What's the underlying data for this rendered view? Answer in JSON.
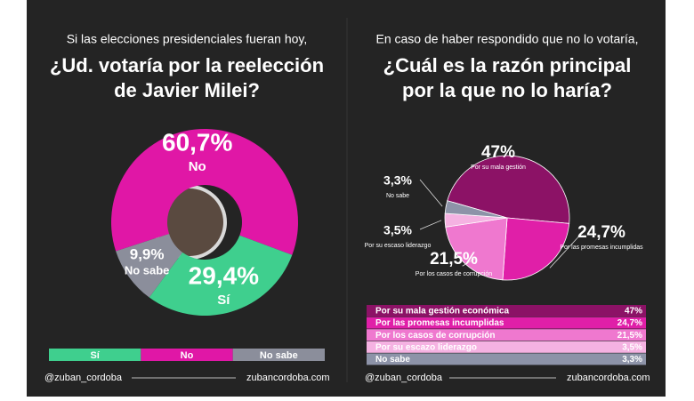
{
  "chart_data": [
    {
      "type": "donut",
      "subtitle": "Si las elecciones presidenciales fueran hoy,",
      "title": [
        "¿Ud. votaría por la reelección",
        "de Javier Milei?"
      ],
      "categories": [
        "No",
        "Sí",
        "No sabe"
      ],
      "values": [
        60.7,
        29.4,
        9.9
      ],
      "value_labels": [
        "60,7%",
        "29,4%",
        "9,9%"
      ],
      "colors": [
        "#e017a6",
        "#3fcf8e",
        "#8b8e9b"
      ],
      "legend": {
        "labels": [
          "Sí",
          "No",
          "No sabe"
        ],
        "colors": [
          "#3fcf8e",
          "#e017a6",
          "#8b8e9b"
        ]
      }
    },
    {
      "type": "pie",
      "subtitle": "En caso de haber respondido que no lo votaría,",
      "title": [
        "¿Cuál es la razón principal",
        "por la que no lo haría?"
      ],
      "categories": [
        "Por su mala gestión",
        "Por las promesas incumplidas",
        "Por los casos de corrupción",
        "Por su escaso liderazgo",
        "No sabe"
      ],
      "values": [
        47,
        24.7,
        21.5,
        3.5,
        3.3
      ],
      "value_labels": [
        "47%",
        "24,7%",
        "21,5%",
        "3,5%",
        "3,3%"
      ],
      "colors": [
        "#8c1266",
        "#e01fa8",
        "#ef78cf",
        "#f5b2e2",
        "#8d93a8"
      ],
      "legend_labels": [
        "Por su mala gestión económica",
        "Por las promesas incumplidas",
        "Por los casos de corrupción",
        "Por su escazo liderazgo",
        "No sabe"
      ]
    }
  ],
  "footers": [
    {
      "handle": "@zuban_cordoba",
      "site": "zubancordoba.com"
    },
    {
      "handle": "@zuban_cordoba",
      "site": "zubancordoba.com"
    }
  ]
}
